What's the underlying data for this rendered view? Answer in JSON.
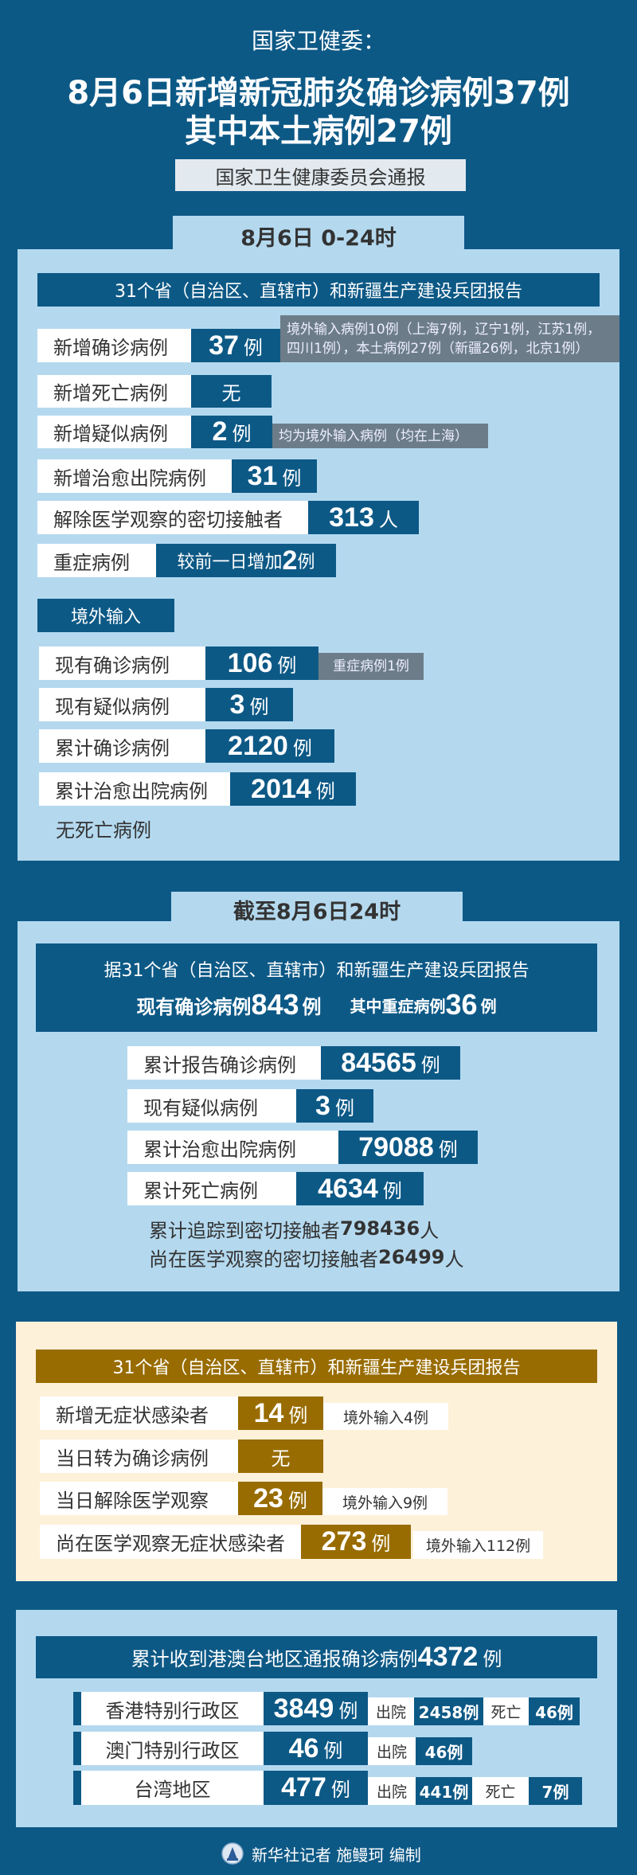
{
  "header": {
    "source": "国家卫健委：",
    "title_line1": "8月6日新增新冠肺炎确诊病例37例",
    "title_line2": "其中本土病例27例",
    "issuer": "国家卫生健康委员会通报"
  },
  "daily": {
    "tab": "8月6日 0-24时",
    "report_bar": "31个省（自治区、直辖市）和新疆生产建设兵团报告",
    "rows": [
      {
        "label": "新增确诊病例",
        "value": "37",
        "unit": "例",
        "note": "境外输入病例10例（上海7例，辽宁1例，江苏1例，四川1例），本土病例27例（新疆26例，北京1例）"
      },
      {
        "label": "新增死亡病例",
        "value": "无"
      },
      {
        "label": "新增疑似病例",
        "value": "2",
        "unit": "例",
        "note": "均为境外输入病例（均在上海）"
      },
      {
        "label": "新增治愈出院病例",
        "value": "31",
        "unit": "例"
      },
      {
        "label": "解除医学观察的密切接触者",
        "value": "313",
        "unit": "人"
      },
      {
        "label": "重症病例",
        "prefix": "较前一日增加",
        "value": "2",
        "unit": "例"
      }
    ],
    "imported": {
      "tag": "境外输入",
      "rows": [
        {
          "label": "现有确诊病例",
          "value": "106",
          "unit": "例",
          "note": "重症病例1例"
        },
        {
          "label": "现有疑似病例",
          "value": "3",
          "unit": "例"
        },
        {
          "label": "累计确诊病例",
          "value": "2120",
          "unit": "例"
        },
        {
          "label": "累计治愈出院病例",
          "value": "2014",
          "unit": "例"
        }
      ],
      "no_death": "无死亡病例"
    }
  },
  "cumulative": {
    "tab": "截至8月6日24时",
    "report_line": "据31个省（自治区、直辖市）和新疆生产建设兵团报告",
    "current_label": "现有确诊病例",
    "current_value": "843",
    "current_unit": "例",
    "severe_label": "其中重症病例",
    "severe_value": "36",
    "severe_unit": "例",
    "rows": [
      {
        "label": "累计报告确诊病例",
        "value": "84565",
        "unit": "例"
      },
      {
        "label": "现有疑似病例",
        "value": "3",
        "unit": "例"
      },
      {
        "label": "累计治愈出院病例",
        "value": "79088",
        "unit": "例"
      },
      {
        "label": "累计死亡病例",
        "value": "4634",
        "unit": "例"
      }
    ],
    "traced_label": "累计追踪到密切接触者",
    "traced_value": "798436",
    "traced_unit": "人",
    "observing_label": "尚在医学观察的密切接触者",
    "observing_value": "26499",
    "observing_unit": "人"
  },
  "asymptomatic": {
    "report_bar": "31个省（自治区、直辖市）和新疆生产建设兵团报告",
    "rows": [
      {
        "label": "新增无症状感染者",
        "value": "14",
        "unit": "例",
        "note": "境外输入4例"
      },
      {
        "label": "当日转为确诊病例",
        "value": "无"
      },
      {
        "label": "当日解除医学观察",
        "value": "23",
        "unit": "例",
        "note": "境外输入9例"
      },
      {
        "label": "尚在医学观察无症状感染者",
        "value": "273",
        "unit": "例",
        "note": "境外输入112例"
      }
    ]
  },
  "hmt": {
    "header_label": "累计收到港澳台地区通报确诊病例",
    "header_value": "4372",
    "header_unit": "例",
    "discharged_label": "出院",
    "death_label": "死亡",
    "rows": [
      {
        "region": "香港特别行政区",
        "value": "3849",
        "unit": "例",
        "discharged": "2458例",
        "deaths": "46例"
      },
      {
        "region": "澳门特别行政区",
        "value": "46",
        "unit": "例",
        "discharged": "46例"
      },
      {
        "region": "台湾地区",
        "value": "477",
        "unit": "例",
        "discharged": "441例",
        "deaths": "7例"
      }
    ]
  },
  "footer": {
    "credit": "新华社记者 施鳗珂 编制",
    "logo": "xinhua-logo-icon"
  },
  "colors": {
    "navy": "#0d5986",
    "light_blue": "#b4d9ef",
    "gray": "#6c7d89",
    "gold": "#986c00",
    "beige": "#fdf1d9"
  }
}
